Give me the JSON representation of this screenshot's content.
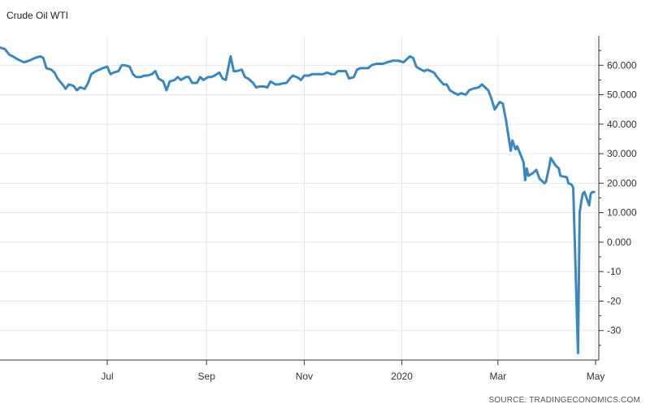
{
  "chart_data": {
    "type": "line",
    "title": "Crude Oil WTI",
    "source": "SOURCE: TRADINGECONOMICS.COM",
    "xlabel": "",
    "ylabel": "",
    "ylim": [
      -40,
      70
    ],
    "grid": true,
    "line_color": "#3a87c2",
    "y_ticks": [
      {
        "value": 60,
        "label": "60.000"
      },
      {
        "value": 50,
        "label": "50.000"
      },
      {
        "value": 40,
        "label": "40.000"
      },
      {
        "value": 30,
        "label": "30.000"
      },
      {
        "value": 20,
        "label": "20.000"
      },
      {
        "value": 10,
        "label": "10.000"
      },
      {
        "value": 0,
        "label": "0.000"
      },
      {
        "value": -10,
        "label": "-10"
      },
      {
        "value": -20,
        "label": "-20"
      },
      {
        "value": -30,
        "label": "-30"
      }
    ],
    "x_ticks": [
      {
        "date": "2019-07-01",
        "label": "Jul"
      },
      {
        "date": "2019-09-01",
        "label": "Sep"
      },
      {
        "date": "2019-11-01",
        "label": "Nov"
      },
      {
        "date": "2020-01-01",
        "label": "2020"
      },
      {
        "date": "2020-03-01",
        "label": "Mar"
      },
      {
        "date": "2020-05-01",
        "label": "May"
      }
    ],
    "x_range": [
      "2019-04-25",
      "2020-05-03"
    ],
    "series": [
      {
        "name": "",
        "points": [
          [
            "2019-04-25",
            66.0
          ],
          [
            "2019-04-28",
            65.5
          ],
          [
            "2019-05-01",
            63.5
          ],
          [
            "2019-05-03",
            63.0
          ],
          [
            "2019-05-06",
            62.0
          ],
          [
            "2019-05-08",
            61.5
          ],
          [
            "2019-05-10",
            61.0
          ],
          [
            "2019-05-13",
            61.5
          ],
          [
            "2019-05-15",
            62.0
          ],
          [
            "2019-05-17",
            62.5
          ],
          [
            "2019-05-20",
            63.0
          ],
          [
            "2019-05-22",
            62.5
          ],
          [
            "2019-05-24",
            59.0
          ],
          [
            "2019-05-27",
            58.5
          ],
          [
            "2019-05-29",
            57.5
          ],
          [
            "2019-05-31",
            55.5
          ],
          [
            "2019-06-03",
            53.5
          ],
          [
            "2019-06-05",
            52.0
          ],
          [
            "2019-06-07",
            53.5
          ],
          [
            "2019-06-10",
            53.0
          ],
          [
            "2019-06-12",
            51.5
          ],
          [
            "2019-06-14",
            52.5
          ],
          [
            "2019-06-17",
            52.0
          ],
          [
            "2019-06-19",
            54.0
          ],
          [
            "2019-06-21",
            57.0
          ],
          [
            "2019-06-24",
            58.0
          ],
          [
            "2019-06-26",
            58.5
          ],
          [
            "2019-06-28",
            59.0
          ],
          [
            "2019-07-01",
            59.5
          ],
          [
            "2019-07-03",
            57.0
          ],
          [
            "2019-07-05",
            57.5
          ],
          [
            "2019-07-08",
            58.0
          ],
          [
            "2019-07-10",
            60.0
          ],
          [
            "2019-07-12",
            60.0
          ],
          [
            "2019-07-15",
            59.5
          ],
          [
            "2019-07-17",
            57.0
          ],
          [
            "2019-07-19",
            56.0
          ],
          [
            "2019-07-22",
            56.0
          ],
          [
            "2019-07-24",
            56.5
          ],
          [
            "2019-07-26",
            56.5
          ],
          [
            "2019-07-29",
            57.0
          ],
          [
            "2019-07-31",
            58.0
          ],
          [
            "2019-08-02",
            55.5
          ],
          [
            "2019-08-05",
            54.5
          ],
          [
            "2019-08-07",
            51.5
          ],
          [
            "2019-08-09",
            54.5
          ],
          [
            "2019-08-12",
            55.0
          ],
          [
            "2019-08-14",
            56.0
          ],
          [
            "2019-08-16",
            55.0
          ],
          [
            "2019-08-19",
            56.0
          ],
          [
            "2019-08-21",
            56.0
          ],
          [
            "2019-08-23",
            54.0
          ],
          [
            "2019-08-26",
            54.0
          ],
          [
            "2019-08-28",
            56.0
          ],
          [
            "2019-08-30",
            55.0
          ],
          [
            "2019-09-02",
            56.0
          ],
          [
            "2019-09-04",
            56.0
          ],
          [
            "2019-09-06",
            56.5
          ],
          [
            "2019-09-09",
            57.5
          ],
          [
            "2019-09-11",
            55.5
          ],
          [
            "2019-09-13",
            55.0
          ],
          [
            "2019-09-16",
            63.0
          ],
          [
            "2019-09-18",
            58.0
          ],
          [
            "2019-09-20",
            58.0
          ],
          [
            "2019-09-23",
            58.5
          ],
          [
            "2019-09-25",
            56.0
          ],
          [
            "2019-09-27",
            55.5
          ],
          [
            "2019-09-30",
            54.0
          ],
          [
            "2019-10-02",
            52.5
          ],
          [
            "2019-10-04",
            52.8
          ],
          [
            "2019-10-07",
            52.8
          ],
          [
            "2019-10-09",
            52.5
          ],
          [
            "2019-10-11",
            54.5
          ],
          [
            "2019-10-14",
            53.5
          ],
          [
            "2019-10-16",
            53.5
          ],
          [
            "2019-10-18",
            53.8
          ],
          [
            "2019-10-21",
            54.0
          ],
          [
            "2019-10-23",
            55.5
          ],
          [
            "2019-10-25",
            56.5
          ],
          [
            "2019-10-28",
            55.8
          ],
          [
            "2019-10-30",
            55.0
          ],
          [
            "2019-11-01",
            56.5
          ],
          [
            "2019-11-04",
            56.5
          ],
          [
            "2019-11-06",
            57.0
          ],
          [
            "2019-11-08",
            57.0
          ],
          [
            "2019-11-11",
            57.0
          ],
          [
            "2019-11-13",
            57.0
          ],
          [
            "2019-11-15",
            57.5
          ],
          [
            "2019-11-18",
            57.0
          ],
          [
            "2019-11-20",
            57.0
          ],
          [
            "2019-11-22",
            58.0
          ],
          [
            "2019-11-25",
            58.0
          ],
          [
            "2019-11-27",
            58.0
          ],
          [
            "2019-11-29",
            55.5
          ],
          [
            "2019-12-02",
            56.0
          ],
          [
            "2019-12-04",
            58.5
          ],
          [
            "2019-12-06",
            59.0
          ],
          [
            "2019-12-09",
            59.0
          ],
          [
            "2019-12-11",
            59.0
          ],
          [
            "2019-12-13",
            60.0
          ],
          [
            "2019-12-16",
            60.5
          ],
          [
            "2019-12-18",
            60.5
          ],
          [
            "2019-12-20",
            60.5
          ],
          [
            "2019-12-23",
            61.0
          ],
          [
            "2019-12-26",
            61.5
          ],
          [
            "2019-12-30",
            61.5
          ],
          [
            "2020-01-02",
            61.0
          ],
          [
            "2020-01-06",
            63.0
          ],
          [
            "2020-01-08",
            62.5
          ],
          [
            "2020-01-10",
            59.5
          ],
          [
            "2020-01-13",
            58.5
          ],
          [
            "2020-01-15",
            58.0
          ],
          [
            "2020-01-17",
            58.5
          ],
          [
            "2020-01-21",
            57.5
          ],
          [
            "2020-01-23",
            56.0
          ],
          [
            "2020-01-27",
            53.5
          ],
          [
            "2020-01-29",
            53.5
          ],
          [
            "2020-01-31",
            51.5
          ],
          [
            "2020-02-03",
            50.5
          ],
          [
            "2020-02-05",
            50.0
          ],
          [
            "2020-02-07",
            50.5
          ],
          [
            "2020-02-10",
            50.0
          ],
          [
            "2020-02-12",
            51.5
          ],
          [
            "2020-02-14",
            52.0
          ],
          [
            "2020-02-18",
            52.5
          ],
          [
            "2020-02-20",
            53.5
          ],
          [
            "2020-02-24",
            51.5
          ],
          [
            "2020-02-26",
            48.5
          ],
          [
            "2020-02-28",
            45.0
          ],
          [
            "2020-03-02",
            47.5
          ],
          [
            "2020-03-04",
            47.0
          ],
          [
            "2020-03-06",
            41.5
          ],
          [
            "2020-03-09",
            31.0
          ],
          [
            "2020-03-10",
            34.5
          ],
          [
            "2020-03-12",
            31.5
          ],
          [
            "2020-03-13",
            32.5
          ],
          [
            "2020-03-16",
            28.5
          ],
          [
            "2020-03-17",
            27.0
          ],
          [
            "2020-03-18",
            21.0
          ],
          [
            "2020-03-19",
            25.0
          ],
          [
            "2020-03-20",
            22.5
          ],
          [
            "2020-03-23",
            23.5
          ],
          [
            "2020-03-25",
            24.5
          ],
          [
            "2020-03-27",
            21.5
          ],
          [
            "2020-03-30",
            20.0
          ],
          [
            "2020-03-31",
            20.5
          ],
          [
            "2020-04-02",
            25.5
          ],
          [
            "2020-04-03",
            28.5
          ],
          [
            "2020-04-06",
            26.0
          ],
          [
            "2020-04-08",
            25.0
          ],
          [
            "2020-04-09",
            22.5
          ],
          [
            "2020-04-13",
            22.0
          ],
          [
            "2020-04-14",
            20.0
          ],
          [
            "2020-04-16",
            19.5
          ],
          [
            "2020-04-17",
            18.5
          ],
          [
            "2020-04-20",
            -37.6
          ],
          [
            "2020-04-21",
            10.0
          ],
          [
            "2020-04-22",
            13.5
          ],
          [
            "2020-04-23",
            16.5
          ],
          [
            "2020-04-24",
            17.0
          ],
          [
            "2020-04-27",
            12.5
          ],
          [
            "2020-04-28",
            16.5
          ],
          [
            "2020-04-29",
            17.0
          ],
          [
            "2020-04-30",
            17.0
          ]
        ]
      }
    ]
  }
}
